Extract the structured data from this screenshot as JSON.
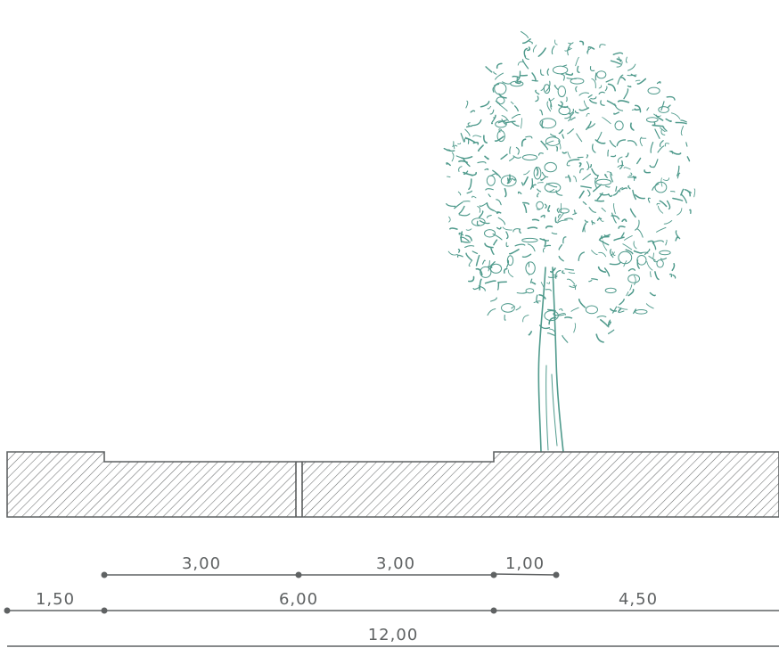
{
  "colors": {
    "line": "#5f6263",
    "tree": "#4f9a8c",
    "hatch": "#6a6d6e",
    "background": "#ffffff"
  },
  "dimensions": {
    "row1": [
      "3,00",
      "3,00",
      "1,00"
    ],
    "row2": [
      "1,50",
      "6,00",
      "4,50"
    ],
    "row3": [
      "12,00"
    ]
  },
  "icons": {
    "tree": "tree-icon"
  }
}
